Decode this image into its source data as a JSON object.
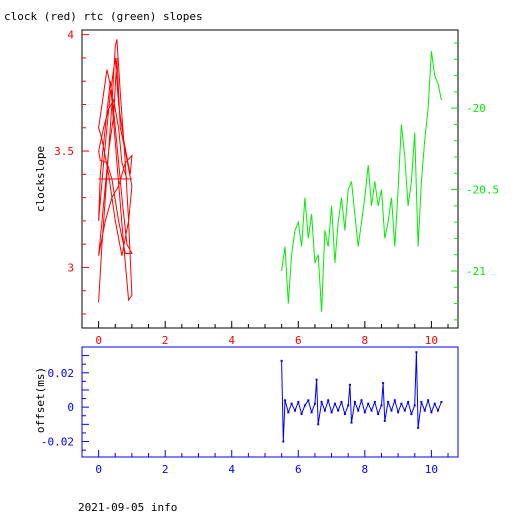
{
  "title": "clock (red) rtc (green) slopes",
  "footer": "2021-09-05 info",
  "colors": {
    "clock": "#ff0000",
    "rtc": "#00ee00",
    "offset": "#0000ff",
    "axes_top": "#000000",
    "axes_bottom": "#0000ff"
  },
  "chart_data": [
    {
      "type": "line",
      "ylabel": "clockslope",
      "xlim": [
        -0.5,
        10.8
      ],
      "ylim_left": [
        2.74,
        4.02
      ],
      "ylim_right": [
        -21.35,
        -19.52
      ],
      "x_ticks": [
        0,
        2,
        4,
        6,
        8,
        10
      ],
      "x_tick_labels": [
        "0",
        "2",
        "4",
        "6",
        "8",
        "10"
      ],
      "y_left_ticks": [
        3,
        3.5,
        4
      ],
      "y_left_tick_labels": [
        "3",
        "3.5",
        "4"
      ],
      "y_right_ticks": [
        -21,
        -20.5,
        -20
      ],
      "y_right_tick_labels": [
        "-21",
        "-20.5",
        "-20"
      ],
      "grid": false,
      "series": [
        {
          "name": "clock",
          "axis": "left",
          "x": [
            0.0,
            0.1,
            0.25,
            0.4,
            0.5,
            0.55,
            0.65,
            0.8,
            0.9,
            1.0,
            0.9,
            0.75,
            0.55,
            0.35,
            0.2,
            0.05,
            0.0,
            0.15,
            0.35,
            0.5,
            0.6,
            0.75,
            0.95,
            1.0,
            0.8,
            0.6,
            0.4,
            0.2,
            0.0,
            0.1,
            0.3,
            0.45,
            0.55,
            0.65,
            0.8,
            1.0,
            0.9,
            0.7,
            0.5,
            0.3,
            0.1,
            0.0,
            0.1,
            0.25,
            0.4,
            0.5,
            0.6,
            0.7,
            0.85,
            1.0,
            0.8,
            0.6,
            0.4,
            0.25,
            0.05,
            0.0,
            0.15,
            0.3,
            0.45,
            0.6,
            0.7,
            0.85,
            1.0,
            0.6,
            0.2,
            0.0
          ],
          "y": [
            2.85,
            3.1,
            3.4,
            3.7,
            3.95,
            3.98,
            3.75,
            3.45,
            3.2,
            2.88,
            2.86,
            3.1,
            3.45,
            3.8,
            3.6,
            3.4,
            3.2,
            3.45,
            3.75,
            3.9,
            3.7,
            3.55,
            3.4,
            3.48,
            3.45,
            3.35,
            3.3,
            3.2,
            3.05,
            3.2,
            3.5,
            3.65,
            3.9,
            3.6,
            3.5,
            3.35,
            3.2,
            3.05,
            3.2,
            3.4,
            3.55,
            3.6,
            3.7,
            3.85,
            3.75,
            3.6,
            3.45,
            3.3,
            3.1,
            3.06,
            3.06,
            3.2,
            3.38,
            3.45,
            3.46,
            3.5,
            3.6,
            3.68,
            3.72,
            3.6,
            3.45,
            3.38,
            3.38,
            3.38,
            3.38,
            3.38
          ]
        },
        {
          "name": "rtc",
          "axis": "right",
          "x": [
            5.5,
            5.6,
            5.7,
            5.8,
            5.9,
            6.0,
            6.1,
            6.2,
            6.3,
            6.4,
            6.5,
            6.6,
            6.7,
            6.8,
            6.9,
            7.0,
            7.1,
            7.2,
            7.3,
            7.4,
            7.5,
            7.6,
            7.7,
            7.8,
            7.9,
            8.0,
            8.1,
            8.2,
            8.3,
            8.4,
            8.5,
            8.6,
            8.7,
            8.8,
            8.9,
            9.0,
            9.1,
            9.2,
            9.3,
            9.4,
            9.5,
            9.6,
            9.7,
            9.8,
            9.9,
            10.0,
            10.1,
            10.2,
            10.3
          ],
          "y": [
            -21.0,
            -20.85,
            -21.2,
            -20.9,
            -20.75,
            -20.7,
            -20.85,
            -20.55,
            -20.8,
            -20.65,
            -20.95,
            -20.9,
            -21.25,
            -20.75,
            -20.85,
            -20.6,
            -20.95,
            -20.7,
            -20.55,
            -20.75,
            -20.5,
            -20.45,
            -20.65,
            -20.85,
            -20.7,
            -20.55,
            -20.35,
            -20.6,
            -20.45,
            -20.6,
            -20.5,
            -20.8,
            -20.7,
            -20.55,
            -20.85,
            -20.5,
            -20.1,
            -20.3,
            -20.6,
            -20.45,
            -20.15,
            -20.85,
            -20.45,
            -20.2,
            -20.0,
            -19.65,
            -19.8,
            -19.85,
            -19.95
          ]
        }
      ]
    },
    {
      "type": "scatter",
      "ylabel": "offset(ms)",
      "xlim": [
        -0.5,
        10.8
      ],
      "ylim": [
        -0.029,
        0.035
      ],
      "x_ticks": [
        0,
        2,
        4,
        6,
        8,
        10
      ],
      "x_tick_labels": [
        "0",
        "2",
        "4",
        "6",
        "8",
        "10"
      ],
      "y_ticks": [
        -0.02,
        0,
        0.02
      ],
      "y_tick_labels": [
        "-0.02",
        "0",
        "0.02"
      ],
      "grid": false,
      "series": [
        {
          "name": "offset",
          "x": [
            5.5,
            5.55,
            5.6,
            5.7,
            5.8,
            5.9,
            6.0,
            6.1,
            6.2,
            6.3,
            6.4,
            6.5,
            6.55,
            6.6,
            6.7,
            6.8,
            6.9,
            7.0,
            7.1,
            7.2,
            7.3,
            7.4,
            7.5,
            7.55,
            7.6,
            7.7,
            7.8,
            7.9,
            8.0,
            8.1,
            8.2,
            8.3,
            8.4,
            8.5,
            8.55,
            8.6,
            8.7,
            8.8,
            8.9,
            9.0,
            9.1,
            9.2,
            9.3,
            9.4,
            9.5,
            9.55,
            9.6,
            9.7,
            9.8,
            9.9,
            10.0,
            10.1,
            10.2,
            10.3
          ],
          "y": [
            0.027,
            -0.02,
            0.004,
            -0.003,
            0.002,
            -0.002,
            0.003,
            -0.004,
            0.001,
            0.004,
            -0.003,
            0.002,
            0.016,
            -0.01,
            0.003,
            -0.002,
            0.004,
            -0.003,
            0.002,
            -0.002,
            0.003,
            -0.004,
            0.001,
            0.013,
            -0.009,
            0.003,
            -0.002,
            0.004,
            -0.003,
            0.002,
            -0.002,
            0.003,
            -0.004,
            0.001,
            0.014,
            -0.008,
            0.003,
            -0.002,
            0.004,
            -0.003,
            0.002,
            -0.002,
            0.003,
            -0.004,
            0.001,
            0.032,
            -0.012,
            0.003,
            -0.002,
            0.004,
            -0.003,
            0.002,
            -0.002,
            0.003
          ]
        }
      ]
    }
  ]
}
